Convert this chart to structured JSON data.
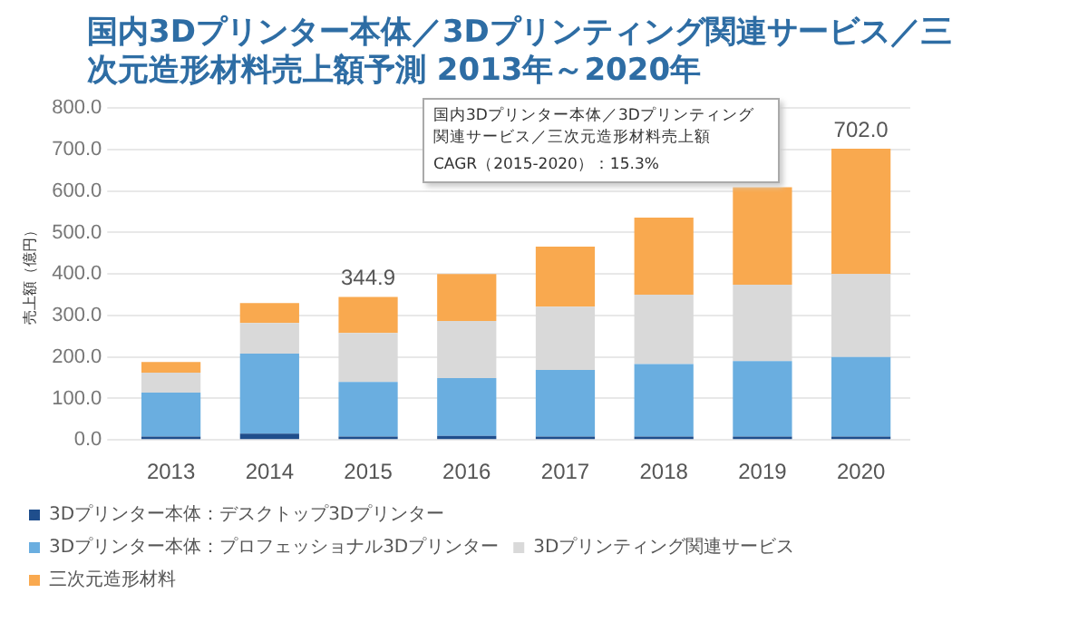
{
  "chart_data": {
    "type": "bar",
    "stacked": true,
    "title": "国内3Dプリンター本体／3Dプリンティング関連サービス／三次元造形材料売上額予測 2013年～2020年",
    "ylabel": "売上額（億円）",
    "categories": [
      "2013",
      "2014",
      "2015",
      "2016",
      "2017",
      "2018",
      "2019",
      "2020"
    ],
    "series": [
      {
        "name": "3Dプリンター本体：デスクトップ3Dプリンター",
        "color": "#1f4e8c",
        "values": [
          8,
          15,
          8,
          10,
          8,
          8,
          8,
          8
        ]
      },
      {
        "name": "3Dプリンター本体：プロフェッショナル3Dプリンター",
        "color": "#6aaee0",
        "values": [
          106,
          193,
          132,
          139,
          161,
          175,
          182,
          192
        ]
      },
      {
        "name": "3Dプリンティング関連サービス",
        "color": "#d9d9d9",
        "values": [
          48,
          74,
          118,
          138,
          152,
          167,
          184,
          200
        ]
      },
      {
        "name": "三次元造形材料",
        "color": "#f9a94f",
        "values": [
          26,
          48,
          86.9,
          113,
          145,
          186,
          235,
          302
        ]
      }
    ],
    "totals": [
      null,
      null,
      "344.9",
      null,
      null,
      null,
      null,
      "702.0"
    ],
    "annotations": [
      "国内3Dプリンター本体／3Dプリンティング関連サービス／三次元造形材料売上額",
      "CAGR（2015-2020）：15.3%"
    ],
    "ylim": [
      0,
      800
    ],
    "yticks": [
      {
        "value": 0,
        "label": "0.0"
      },
      {
        "value": 100,
        "label": "100.0"
      },
      {
        "value": 200,
        "label": "200.0"
      },
      {
        "value": 300,
        "label": "300.0"
      },
      {
        "value": 400,
        "label": "400.0"
      },
      {
        "value": 500,
        "label": "500.0"
      },
      {
        "value": 600,
        "label": "600.0"
      },
      {
        "value": 700,
        "label": "700.0"
      },
      {
        "value": 800,
        "label": "800.0"
      }
    ],
    "grid": "y",
    "legend": "bottom"
  }
}
